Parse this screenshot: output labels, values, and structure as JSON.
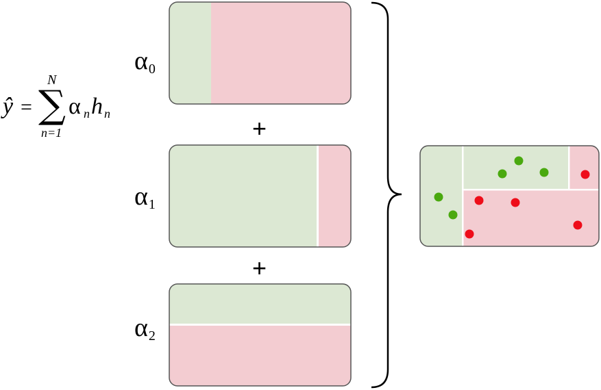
{
  "formula": {
    "lhs": "ŷ",
    "equals": "=",
    "sum_symbol": "∑",
    "upper_limit": "N",
    "lower_limit": "n=1",
    "term_alpha": "α",
    "term_alpha_sub": "n",
    "term_h": "h",
    "term_h_sub": "n"
  },
  "classifiers": [
    {
      "alpha": "α",
      "sub": "0"
    },
    {
      "alpha": "α",
      "sub": "1"
    },
    {
      "alpha": "α",
      "sub": "2"
    }
  ],
  "plus_sign": "+",
  "colors": {
    "green_region": "#dce8d3",
    "red_region": "#f3ccd1",
    "green_point": "#4aa90f",
    "red_point": "#ee0d1a",
    "border": "#555555"
  }
}
